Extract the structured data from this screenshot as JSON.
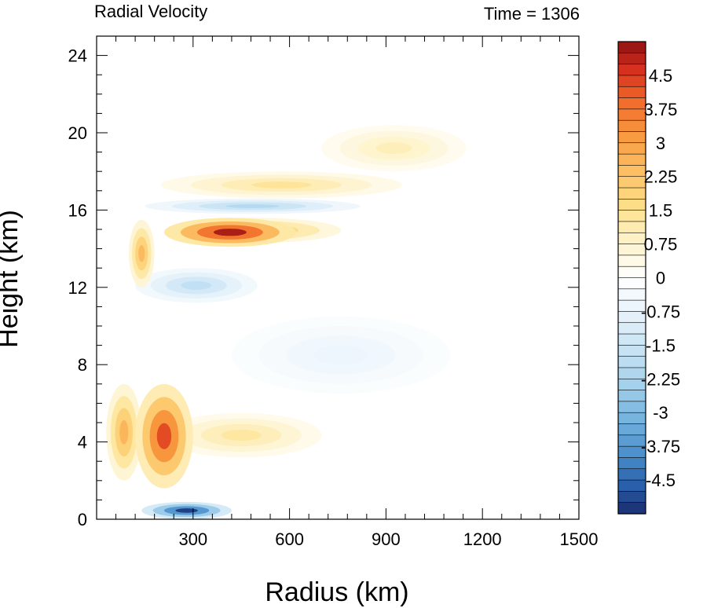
{
  "chart_data": {
    "type": "heatmap",
    "title_left": "Radial Velocity",
    "title_right": "Time = 1306",
    "xlabel": "Radius (km)",
    "ylabel": "Height (km)",
    "xlim": [
      0,
      1500
    ],
    "ylim": [
      0,
      25
    ],
    "xticks": [
      300,
      600,
      900,
      1200,
      1500
    ],
    "yticks": [
      0,
      4,
      8,
      12,
      16,
      20,
      24
    ],
    "colorbar": {
      "min": -5.25,
      "max": 5.25,
      "step": 0.25,
      "labels": [
        "4.5",
        "3.75",
        "3",
        "2.25",
        "1.5",
        "0.75",
        "0",
        "-0.75",
        "-1.5",
        "-2.25",
        "-3",
        "-3.75",
        "-4.5"
      ],
      "label_values": [
        4.5,
        3.75,
        3,
        2.25,
        1.5,
        0.75,
        0,
        -0.75,
        -1.5,
        -2.25,
        -3,
        -3.75,
        -4.5
      ]
    },
    "features": [
      {
        "r0": 210,
        "r1": 620,
        "z0": 14.1,
        "z1": 15.6,
        "peak": 5.0
      },
      {
        "r0": 230,
        "r1": 760,
        "z0": 14.3,
        "z1": 15.6,
        "peak": 2.2
      },
      {
        "r0": 150,
        "r1": 820,
        "z0": 15.8,
        "z1": 16.6,
        "peak": -2.0
      },
      {
        "r0": 200,
        "r1": 950,
        "z0": 16.6,
        "z1": 18.0,
        "peak": 1.4
      },
      {
        "r0": 700,
        "r1": 1150,
        "z0": 18.0,
        "z1": 20.4,
        "peak": 1.0
      },
      {
        "r0": 120,
        "r1": 500,
        "z0": 11.2,
        "z1": 13.0,
        "peak": -1.7
      },
      {
        "r0": 120,
        "r1": 300,
        "z0": 1.6,
        "z1": 7.0,
        "peak": 4.3
      },
      {
        "r0": 200,
        "r1": 700,
        "z0": 3.2,
        "z1": 5.5,
        "peak": 1.3
      },
      {
        "r0": 140,
        "r1": 420,
        "z0": 0.0,
        "z1": 0.9,
        "peak": -5.0
      },
      {
        "r0": 30,
        "r1": 140,
        "z0": 2.0,
        "z1": 7.0,
        "peak": 2.6
      },
      {
        "r0": 100,
        "r1": 180,
        "z0": 12.0,
        "z1": 15.5,
        "peak": 2.5
      },
      {
        "r0": 420,
        "r1": 1100,
        "z0": 6.5,
        "z1": 10.5,
        "peak": -0.6
      }
    ]
  }
}
